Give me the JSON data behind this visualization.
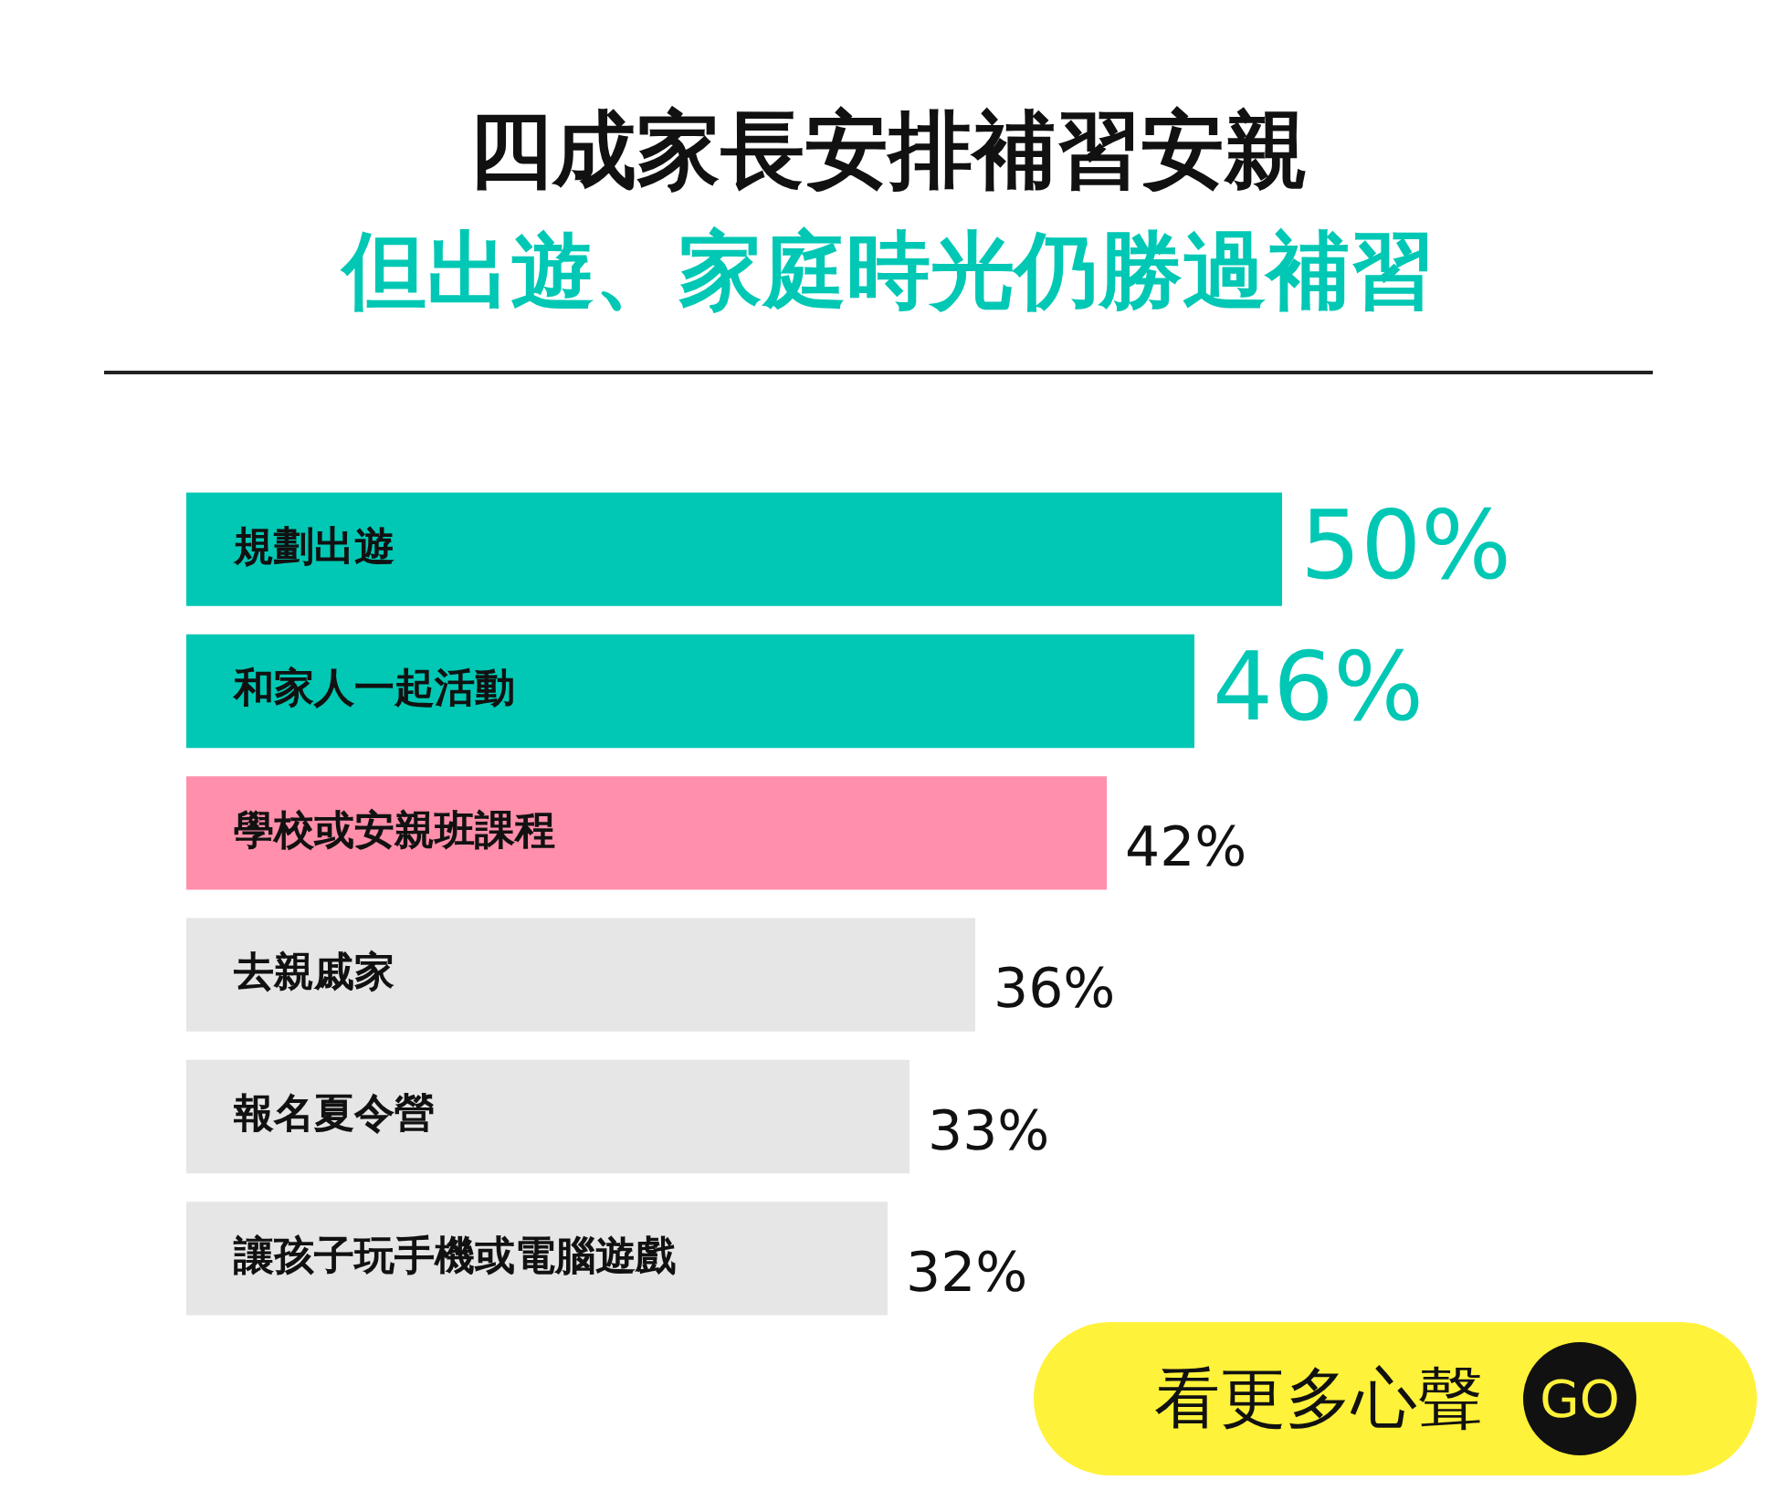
{
  "chart_data": {
    "type": "bar",
    "orientation": "horizontal",
    "title": "四成家長安排補習安親",
    "subtitle": "但出遊、家庭時光仍勝過補習",
    "categories": [
      "規劃出遊",
      "和家人一起活動",
      "學校或安親班課程",
      "去親戚家",
      "報名夏令營",
      "讓孩子玩手機或電腦遊戲"
    ],
    "values": [
      50,
      46,
      42,
      36,
      33,
      32
    ],
    "colors": [
      "#00c8b4",
      "#00c8b4",
      "#ff8fab",
      "#e6e6e6",
      "#e6e6e6",
      "#e6e6e6"
    ],
    "value_labels": [
      "50%",
      "46%",
      "42%",
      "36%",
      "33%",
      "32%"
    ],
    "annotations": [
      "看更多心聲",
      "GO"
    ],
    "legend": false
  }
}
